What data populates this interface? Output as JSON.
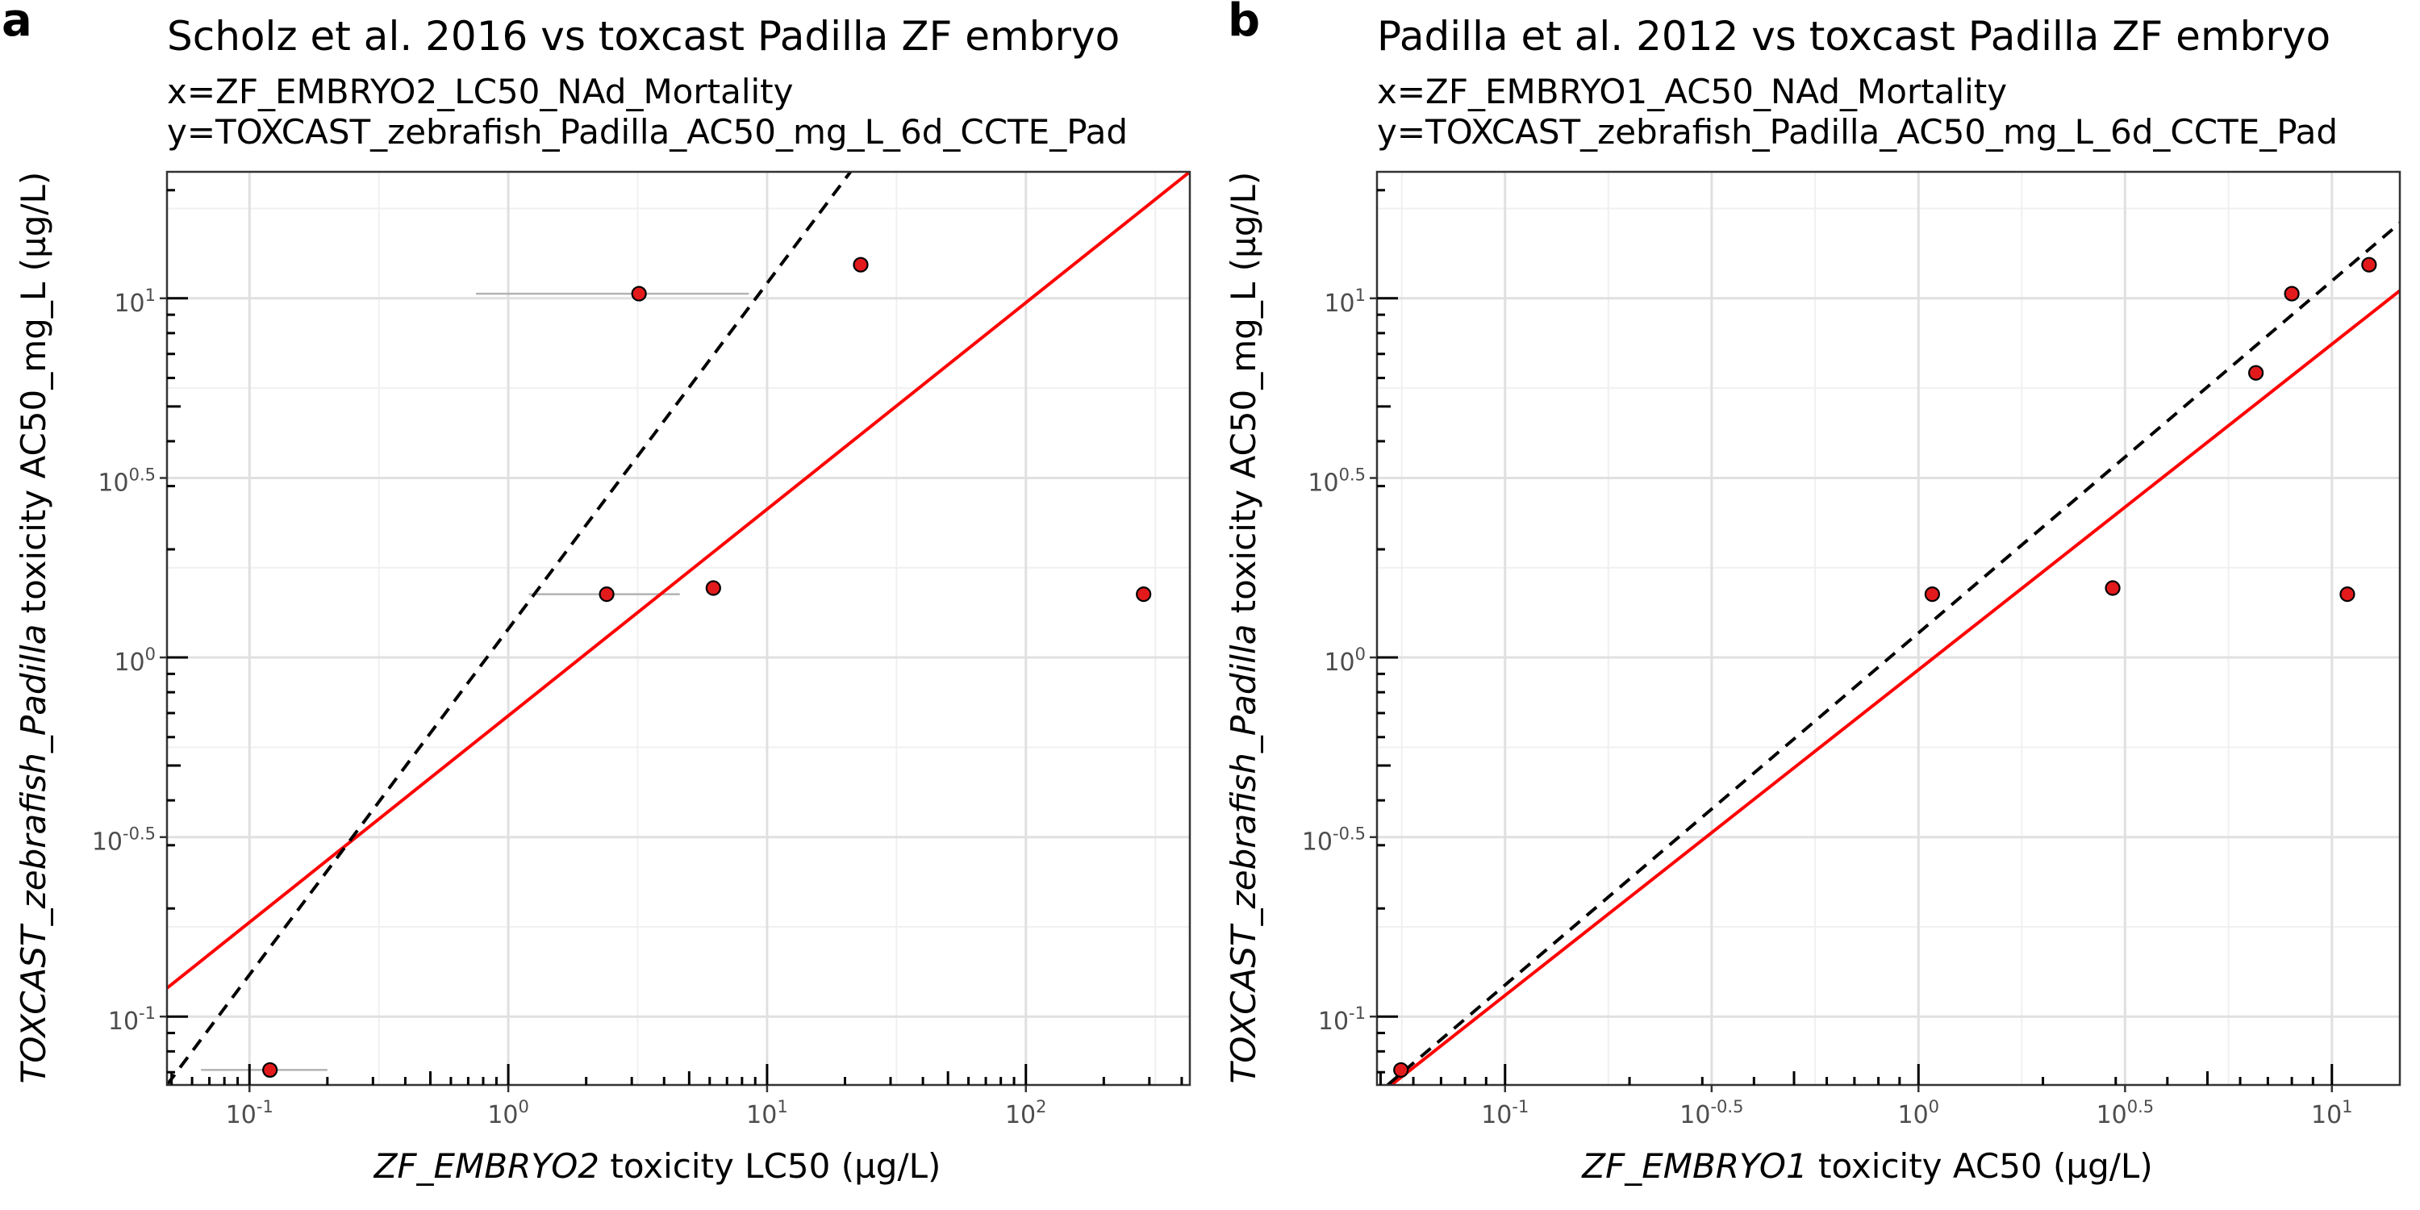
{
  "chart_data": [
    {
      "type": "scatter",
      "panel": "a",
      "title": "Scholz et al. 2016 vs toxcast Padilla ZF embryo",
      "subtitle_lines": [
        "x=ZF_EMBRYO2_LC50_NAd_Mortality",
        "y=TOXCAST_zebrafish_Padilla_AC50_mg_L_6d_CCTE_Pad"
      ],
      "xlabel_italic": "ZF_EMBRYO2",
      "xlabel_rest": " toxicity LC50 (µg/L)",
      "ylabel_italic": "TOXCAST_zebrafish_Padilla",
      "ylabel_rest": " toxicity AC50_mg_L (µg/L)",
      "xscale": "log10",
      "yscale": "log10",
      "xlim": [
        0.048,
        430
      ],
      "ylim": [
        0.0645,
        22.5
      ],
      "x_ticks": [
        {
          "base": "10",
          "exp": "-1"
        },
        {
          "base": "10",
          "exp": "0"
        },
        {
          "base": "10",
          "exp": "1"
        },
        {
          "base": "10",
          "exp": "2"
        }
      ],
      "x_tick_values": [
        0.1,
        1,
        10,
        100
      ],
      "y_ticks": [
        {
          "base": "10",
          "exp": "-1"
        },
        {
          "base": "10",
          "exp": "-0.5"
        },
        {
          "base": "10",
          "exp": "0"
        },
        {
          "base": "10",
          "exp": "0.5"
        },
        {
          "base": "10",
          "exp": "1"
        }
      ],
      "y_tick_values": [
        0.1,
        0.316,
        1,
        3.16,
        10
      ],
      "grid": true,
      "points": [
        {
          "x": 0.12,
          "y": 0.071,
          "xerr": [
            0.065,
            0.2
          ]
        },
        {
          "x": 2.4,
          "y": 1.5,
          "xerr": [
            1.2,
            4.6
          ]
        },
        {
          "x": 3.2,
          "y": 10.3,
          "xerr": [
            0.75,
            8.5
          ]
        },
        {
          "x": 6.2,
          "y": 1.56
        },
        {
          "x": 23,
          "y": 12.4
        },
        {
          "x": 285,
          "y": 1.5
        }
      ],
      "fit_lines": [
        {
          "style": "solid",
          "color": "#ff0000",
          "x": [
            0.048,
            430
          ],
          "y": [
            0.12,
            22.5
          ]
        },
        {
          "style": "dashed",
          "color": "#000000",
          "x": [
            0.048,
            21
          ],
          "y": [
            0.0645,
            22.5
          ]
        }
      ]
    },
    {
      "type": "scatter",
      "panel": "b",
      "title": "Padilla et al. 2012 vs toxcast Padilla ZF embryo",
      "subtitle_lines": [
        "x=ZF_EMBRYO1_AC50_NAd_Mortality",
        "y=TOXCAST_zebrafish_Padilla_AC50_mg_L_6d_CCTE_Pad"
      ],
      "xlabel_italic": "ZF_EMBRYO1",
      "xlabel_rest": " toxicity AC50 (µg/L)",
      "ylabel_italic": "TOXCAST_zebrafish_Padilla",
      "ylabel_rest": " toxicity AC50_mg_L (µg/L)",
      "xscale": "log10",
      "yscale": "log10",
      "xlim": [
        0.049,
        14.6
      ],
      "ylim": [
        0.0645,
        22.5
      ],
      "x_ticks": [
        {
          "base": "10",
          "exp": "-1"
        },
        {
          "base": "10",
          "exp": "-0.5"
        },
        {
          "base": "10",
          "exp": "0"
        },
        {
          "base": "10",
          "exp": "0.5"
        },
        {
          "base": "10",
          "exp": "1"
        }
      ],
      "x_tick_values": [
        0.1,
        0.316,
        1,
        3.16,
        10
      ],
      "y_ticks": [
        {
          "base": "10",
          "exp": "-1"
        },
        {
          "base": "10",
          "exp": "-0.5"
        },
        {
          "base": "10",
          "exp": "0"
        },
        {
          "base": "10",
          "exp": "0.5"
        },
        {
          "base": "10",
          "exp": "1"
        }
      ],
      "y_tick_values": [
        0.1,
        0.316,
        1,
        3.16,
        10
      ],
      "grid": true,
      "points": [
        {
          "x": 0.056,
          "y": 0.071
        },
        {
          "x": 1.08,
          "y": 1.5
        },
        {
          "x": 2.95,
          "y": 1.56
        },
        {
          "x": 6.55,
          "y": 6.2
        },
        {
          "x": 8.0,
          "y": 10.3
        },
        {
          "x": 10.9,
          "y": 1.5
        },
        {
          "x": 12.3,
          "y": 12.4
        }
      ],
      "fit_lines": [
        {
          "style": "solid",
          "color": "#ff0000",
          "x": [
            0.049,
            14.6
          ],
          "y": [
            0.06,
            10.5
          ]
        },
        {
          "style": "dashed",
          "color": "#000000",
          "x": [
            0.052,
            14.6
          ],
          "y": [
            0.0645,
            16.2
          ]
        }
      ]
    }
  ],
  "colors": {
    "point_fill": "#e31a1c",
    "point_stroke": "#000000",
    "errorbar": "#b3b3b3",
    "grid_major": "#e0e0e0",
    "grid_minor": "#f0f0f0",
    "panel_border": "#333333",
    "fit_red": "#ff0000",
    "identity": "#000000"
  }
}
